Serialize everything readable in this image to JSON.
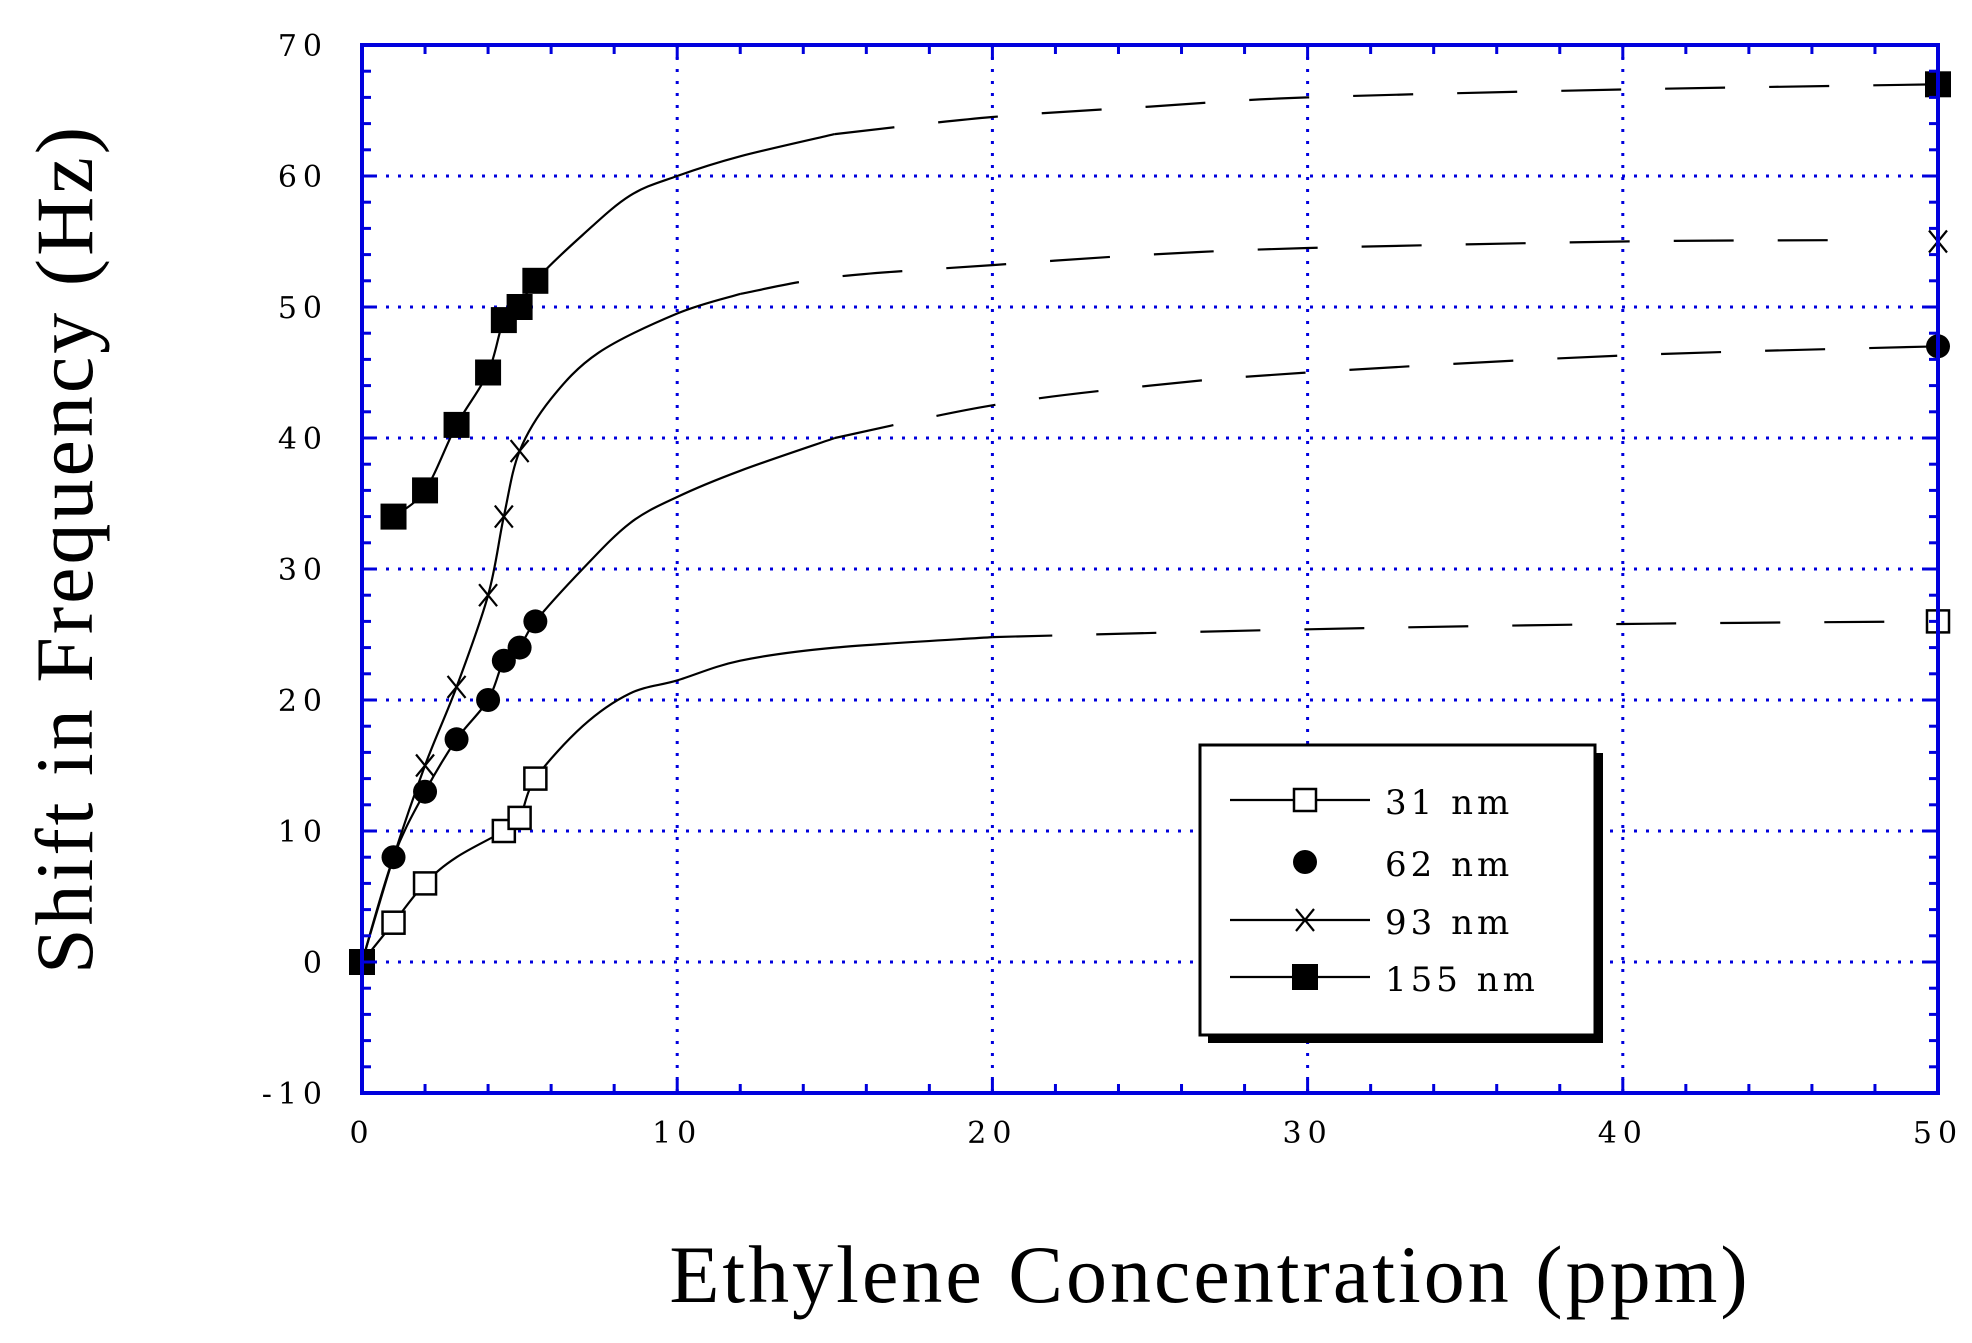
{
  "chart_data": {
    "type": "line",
    "title": "",
    "xlabel": "Ethylene Concentration (ppm)",
    "ylabel": "Shift in Frequency (Hz)",
    "xlim": [
      0,
      50
    ],
    "ylim": [
      -10,
      70
    ],
    "xticks": [
      0,
      10,
      20,
      30,
      40,
      50
    ],
    "yticks": [
      -10,
      0,
      10,
      20,
      30,
      40,
      50,
      60,
      70
    ],
    "xtick_labels": [
      "0",
      "10",
      "20",
      "30",
      "40",
      "50"
    ],
    "ytick_labels": [
      "-10",
      "0",
      "10",
      "20",
      "30",
      "40",
      "50",
      "60",
      "70"
    ],
    "grid": true,
    "grid_color": "#0000dd",
    "axis_color": "#0000dd",
    "legend_position": "lower-right",
    "series": [
      {
        "name": "31 nm",
        "marker": "open-square",
        "points": [
          [
            0,
            0
          ],
          [
            1,
            3
          ],
          [
            2,
            6
          ],
          [
            4.5,
            10
          ],
          [
            5,
            11
          ],
          [
            5.5,
            14
          ],
          [
            50,
            26
          ]
        ],
        "curve": [
          [
            0,
            0
          ],
          [
            1,
            3
          ],
          [
            2,
            6
          ],
          [
            3,
            8
          ],
          [
            4.5,
            10
          ],
          [
            5,
            11
          ],
          [
            5.5,
            14
          ],
          [
            7,
            18
          ],
          [
            8.5,
            20.5
          ],
          [
            10,
            21.5
          ],
          [
            12,
            23
          ],
          [
            15,
            24
          ],
          [
            20,
            24.8
          ],
          [
            30,
            25.4
          ],
          [
            40,
            25.8
          ],
          [
            50,
            26
          ]
        ],
        "dash_from_x": 20
      },
      {
        "name": "62 nm",
        "marker": "filled-circle",
        "points": [
          [
            0,
            0
          ],
          [
            1,
            8
          ],
          [
            2,
            13
          ],
          [
            3,
            17
          ],
          [
            4,
            20
          ],
          [
            4.5,
            23
          ],
          [
            5,
            24
          ],
          [
            5.5,
            26
          ],
          [
            50,
            47
          ]
        ],
        "curve": [
          [
            0,
            0
          ],
          [
            1,
            8
          ],
          [
            2,
            13
          ],
          [
            3,
            17
          ],
          [
            4,
            20
          ],
          [
            4.5,
            23
          ],
          [
            5,
            24
          ],
          [
            5.5,
            26
          ],
          [
            7,
            30
          ],
          [
            8.5,
            33.5
          ],
          [
            10,
            35.5
          ],
          [
            12,
            37.5
          ],
          [
            15,
            40
          ],
          [
            20,
            42.5
          ],
          [
            25,
            44
          ],
          [
            30,
            45
          ],
          [
            40,
            46.3
          ],
          [
            50,
            47
          ]
        ],
        "dash_from_x": 15
      },
      {
        "name": "93 nm",
        "marker": "cross",
        "points": [
          [
            0,
            0
          ],
          [
            2,
            15
          ],
          [
            3,
            21
          ],
          [
            4,
            28
          ],
          [
            4.5,
            34
          ],
          [
            5,
            39
          ],
          [
            50,
            55
          ]
        ],
        "curve": [
          [
            0,
            0
          ],
          [
            1,
            8
          ],
          [
            2,
            15
          ],
          [
            3,
            21
          ],
          [
            4,
            28
          ],
          [
            4.5,
            34
          ],
          [
            5,
            39
          ],
          [
            6,
            43
          ],
          [
            7.5,
            46.5
          ],
          [
            10,
            49.5
          ],
          [
            12,
            51
          ],
          [
            15,
            52.3
          ],
          [
            20,
            53.2
          ],
          [
            25,
            54
          ],
          [
            30,
            54.5
          ],
          [
            40,
            55
          ],
          [
            46.5,
            55.1
          ]
        ],
        "dash_from_x": 12
      },
      {
        "name": "155 nm",
        "marker": "filled-square",
        "points": [
          [
            0,
            0
          ],
          [
            1,
            34
          ],
          [
            2,
            36
          ],
          [
            3,
            41
          ],
          [
            4,
            45
          ],
          [
            4.5,
            49
          ],
          [
            5,
            50
          ],
          [
            5.5,
            52
          ],
          [
            50,
            67
          ]
        ],
        "curve": [
          [
            1,
            34
          ],
          [
            2,
            36
          ],
          [
            3,
            41
          ],
          [
            4,
            45
          ],
          [
            4.5,
            49
          ],
          [
            5,
            50
          ],
          [
            5.5,
            52
          ],
          [
            7,
            55.5
          ],
          [
            8.5,
            58.5
          ],
          [
            10,
            60
          ],
          [
            12,
            61.5
          ],
          [
            15,
            63.2
          ],
          [
            20,
            64.5
          ],
          [
            25,
            65.3
          ],
          [
            30,
            66
          ],
          [
            40,
            66.6
          ],
          [
            50,
            67
          ]
        ],
        "dash_from_x": 15
      }
    ]
  }
}
